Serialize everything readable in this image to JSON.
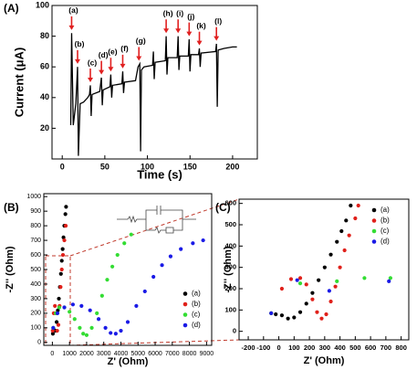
{
  "chart_data": [
    {
      "type": "line",
      "panel_label": "(A)",
      "xlabel": "Time (s)",
      "ylabel": "Current (μA)",
      "xlim": [
        -12,
        229
      ],
      "ylim": [
        0,
        100
      ],
      "xticks": [
        0,
        50,
        100,
        150,
        200
      ],
      "yticks": [
        20,
        40,
        60,
        80,
        100
      ],
      "series": [
        {
          "color": "#000000",
          "x": [
            10,
            11,
            13,
            16,
            18,
            19,
            21,
            25,
            30,
            32,
            33,
            34,
            35,
            44,
            46,
            47,
            48,
            56,
            57,
            58,
            59,
            70,
            71,
            72,
            73,
            86,
            89,
            91,
            92,
            93,
            96,
            106,
            107,
            108,
            109,
            121,
            122,
            123,
            124,
            135,
            136,
            137,
            138,
            148,
            149,
            150,
            151,
            160,
            161,
            162,
            163,
            180,
            181,
            182,
            183,
            190,
            200,
            205
          ],
          "values": [
            22,
            82,
            22,
            36,
            60,
            2,
            36,
            37,
            40,
            42,
            48,
            28,
            42,
            44,
            53,
            35,
            45,
            47,
            55,
            40,
            48,
            49,
            57,
            43,
            50,
            51,
            60,
            62,
            5,
            58,
            60,
            61,
            70,
            52,
            63,
            64,
            80,
            55,
            66,
            66,
            80,
            58,
            67,
            67,
            78,
            57,
            68,
            68,
            72,
            60,
            69,
            70,
            75,
            34,
            71,
            72,
            73,
            73
          ]
        }
      ],
      "annotation_color": "#e02020",
      "annotations": [
        {
          "text": "(a)",
          "x": 11,
          "y": 84
        },
        {
          "text": "(b)",
          "x": 18,
          "y": 62
        },
        {
          "text": "(c)",
          "x": 33,
          "y": 50
        },
        {
          "text": "(d)",
          "x": 46,
          "y": 55
        },
        {
          "text": "(e)",
          "x": 57,
          "y": 57
        },
        {
          "text": "(f)",
          "x": 71,
          "y": 59
        },
        {
          "text": "(g)",
          "x": 90,
          "y": 64
        },
        {
          "text": "(h)",
          "x": 122,
          "y": 82
        },
        {
          "text": "(i)",
          "x": 136,
          "y": 82
        },
        {
          "text": "(j)",
          "x": 149,
          "y": 80
        },
        {
          "text": "(k)",
          "x": 161,
          "y": 74
        },
        {
          "text": "(l)",
          "x": 181,
          "y": 77
        }
      ]
    },
    {
      "type": "scatter",
      "panel_label": "(B)",
      "xlabel": "Z' (Ohm)",
      "ylabel": "-Z'' (Ohm)",
      "xlim": [
        -500,
        9300
      ],
      "ylim": [
        -20,
        1020
      ],
      "xticks": [
        0,
        1000,
        2000,
        3000,
        4000,
        5000,
        6000,
        7000,
        8000,
        9000
      ],
      "yticks": [
        0,
        100,
        200,
        300,
        400,
        500,
        600,
        700,
        800,
        900,
        1000
      ],
      "legend": "right",
      "series": [
        {
          "name": "(a)",
          "color": "#000000",
          "x": [
            30,
            100,
            180,
            250,
            320,
            380,
            440,
            500,
            550,
            600,
            650,
            700,
            760,
            800
          ],
          "values": [
            60,
            85,
            80,
            140,
            220,
            300,
            380,
            470,
            560,
            640,
            720,
            800,
            880,
            930
          ]
        },
        {
          "name": "(b)",
          "color": "#e0201a",
          "x": [
            20,
            80,
            150,
            220,
            280,
            350,
            420,
            480,
            550,
            620,
            700,
            780
          ],
          "values": [
            80,
            200,
            250,
            200,
            80,
            120,
            250,
            380,
            500,
            600,
            700,
            800
          ]
        },
        {
          "name": "(c)",
          "color": "#33dd33",
          "x": [
            50,
            200,
            400,
            700,
            1000,
            1300,
            1600,
            1800,
            2000,
            2300,
            2600,
            2900,
            3200,
            3500,
            3800,
            4200,
            4600
          ],
          "values": [
            100,
            200,
            240,
            240,
            210,
            160,
            100,
            60,
            50,
            100,
            200,
            320,
            430,
            520,
            600,
            680,
            740
          ]
        },
        {
          "name": "(d)",
          "color": "#1a1ae6",
          "x": [
            50,
            300,
            700,
            1200,
            1700,
            2200,
            2700,
            3100,
            3400,
            3700,
            4000,
            4400,
            4900,
            5400,
            5900,
            6400,
            6900,
            7500,
            8200,
            8800
          ],
          "values": [
            100,
            200,
            240,
            260,
            250,
            220,
            160,
            100,
            65,
            60,
            80,
            140,
            250,
            350,
            450,
            530,
            590,
            640,
            680,
            700
          ]
        }
      ]
    },
    {
      "type": "scatter",
      "panel_label": "(C)",
      "xlabel": "Z' (Ohm)",
      "ylabel": "-Z'' (Ohm)",
      "xlim": [
        -260,
        850
      ],
      "ylim": [
        -40,
        620
      ],
      "xticks": [
        -200,
        -100,
        0,
        100,
        200,
        300,
        400,
        500,
        600,
        700,
        800
      ],
      "yticks": [
        0,
        100,
        200,
        300,
        400,
        500,
        600
      ],
      "legend": "top-right",
      "series": [
        {
          "name": "(a)",
          "color": "#000000",
          "x": [
            -20,
            20,
            60,
            100,
            140,
            180,
            220,
            260,
            300,
            340,
            380,
            410,
            440,
            470
          ],
          "values": [
            80,
            75,
            60,
            65,
            90,
            130,
            180,
            240,
            300,
            360,
            420,
            470,
            520,
            590
          ]
        },
        {
          "name": "(b)",
          "color": "#e0201a",
          "x": [
            -50,
            20,
            80,
            140,
            180,
            220,
            250,
            280,
            310,
            340,
            370,
            400,
            430,
            460,
            500,
            520
          ],
          "values": [
            85,
            200,
            245,
            250,
            220,
            150,
            90,
            60,
            80,
            140,
            210,
            300,
            380,
            450,
            530,
            590
          ]
        },
        {
          "name": "(c)",
          "color": "#33dd33",
          "x": [
            -50,
            140,
            380,
            560,
            730
          ],
          "values": [
            85,
            225,
            235,
            250,
            250
          ]
        },
        {
          "name": "(d)",
          "color": "#1a1ae6",
          "x": [
            -50,
            120,
            330,
            720
          ],
          "values": [
            85,
            240,
            190,
            235
          ]
        }
      ]
    }
  ]
}
